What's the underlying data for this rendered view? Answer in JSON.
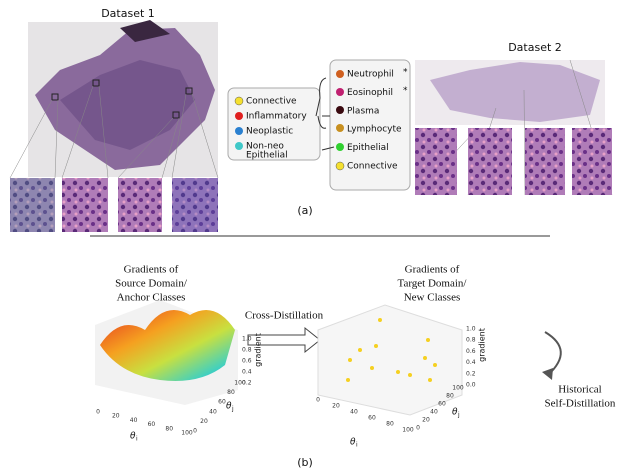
{
  "panel_a": {
    "dataset1": "Dataset 1",
    "dataset2": "Dataset 2",
    "caption": "(a)",
    "source_classes": [
      "Connective",
      "Inflammatory",
      "Neoplastic",
      "Non-neo",
      "Epithelial"
    ],
    "target_classes": [
      {
        "name": "Neutrophil",
        "mark": "*"
      },
      {
        "name": "Eosinophil",
        "mark": "*"
      },
      {
        "name": "Plasma"
      },
      {
        "name": "Lymphocyte"
      },
      {
        "name": "Epithelial"
      },
      {
        "name": "Connective"
      }
    ]
  },
  "panel_b": {
    "caption": "(b)",
    "source_title": [
      "Gradients of",
      "Source Domain/",
      "Anchor Classes"
    ],
    "target_title": [
      "Gradients of",
      "Target Domain/",
      "New Classes"
    ],
    "cross": "Cross-Distillation",
    "self": [
      "Historical",
      "Self-Distillation"
    ],
    "plots": [
      {
        "x_ticks": [
          "0",
          "20",
          "40",
          "60",
          "80",
          "100"
        ],
        "y_ticks": [
          "0",
          "20",
          "40",
          "60",
          "80",
          "100"
        ],
        "z_ticks": [
          "0.2",
          "0.4",
          "0.6",
          "0.8",
          "1.0"
        ],
        "z_label": "gradient",
        "x_label": "θ",
        "x_sub": "i",
        "y_label": "θ",
        "y_sub": "j"
      },
      {
        "x_ticks": [
          "0",
          "20",
          "40",
          "60",
          "80",
          "100"
        ],
        "y_ticks": [
          "0",
          "20",
          "40",
          "60",
          "80",
          "100"
        ],
        "z_ticks": [
          "0.0",
          "0.2",
          "0.4",
          "0.6",
          "0.8",
          "1.0"
        ],
        "z_label": "gradient",
        "x_label": "θ",
        "x_sub": "i",
        "y_label": "θ",
        "y_sub": "j"
      }
    ]
  }
}
